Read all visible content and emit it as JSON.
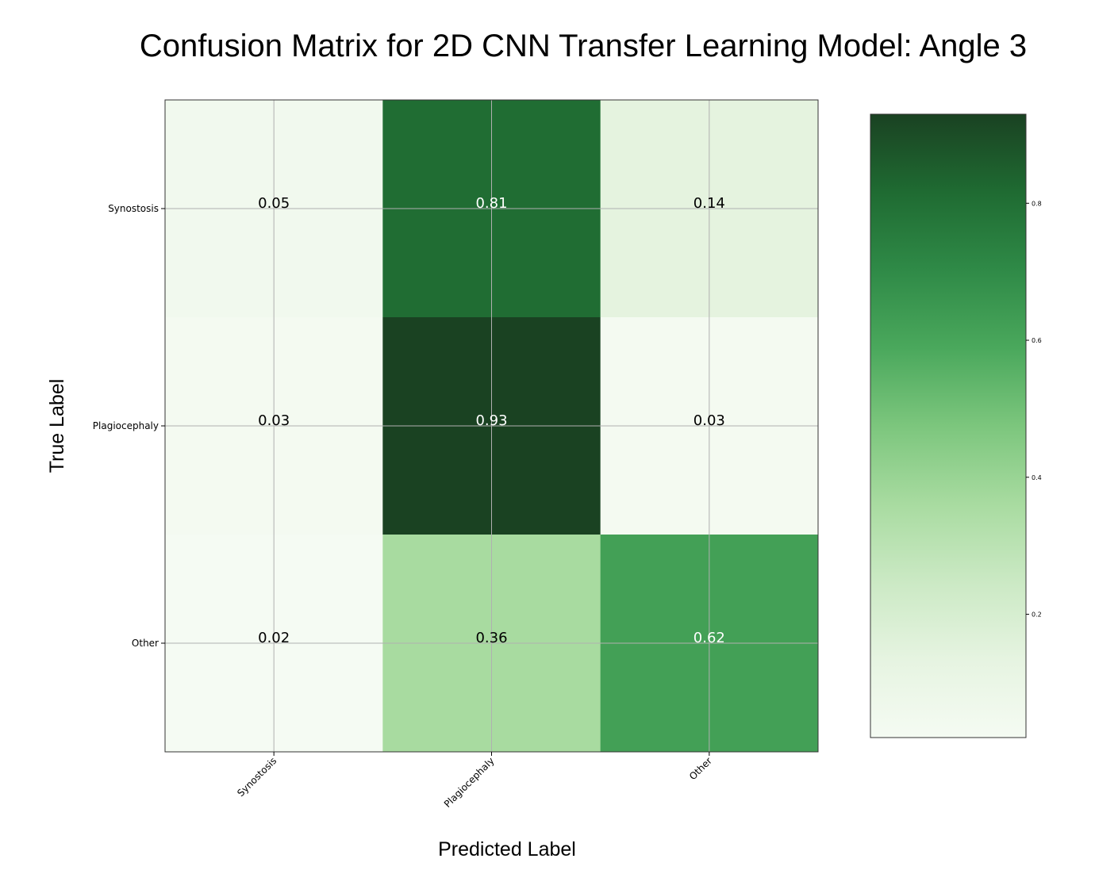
{
  "chart_data": {
    "type": "heatmap",
    "title": "Confusion Matrix for 2D CNN Transfer Learning Model: Angle 3",
    "xlabel": "Predicted Label",
    "ylabel": "True Label",
    "x_categories": [
      "Synostosis",
      "Plagiocephaly",
      "Other"
    ],
    "y_categories": [
      "Synostosis",
      "Plagiocephaly",
      "Other"
    ],
    "values": [
      [
        0.05,
        0.81,
        0.14
      ],
      [
        0.03,
        0.93,
        0.03
      ],
      [
        0.02,
        0.36,
        0.62
      ]
    ],
    "value_labels": [
      [
        "0.05",
        "0.81",
        "0.14"
      ],
      [
        "0.03",
        "0.93",
        "0.03"
      ],
      [
        "0.02",
        "0.36",
        "0.62"
      ]
    ],
    "colormap": "Greens",
    "color_range": [
      0.02,
      0.93
    ],
    "grid": true,
    "colorbar": {
      "ticks": [
        0.2,
        0.4,
        0.6,
        0.8
      ],
      "tick_labels": [
        "0.2",
        "0.4",
        "0.6",
        "0.8"
      ]
    }
  }
}
